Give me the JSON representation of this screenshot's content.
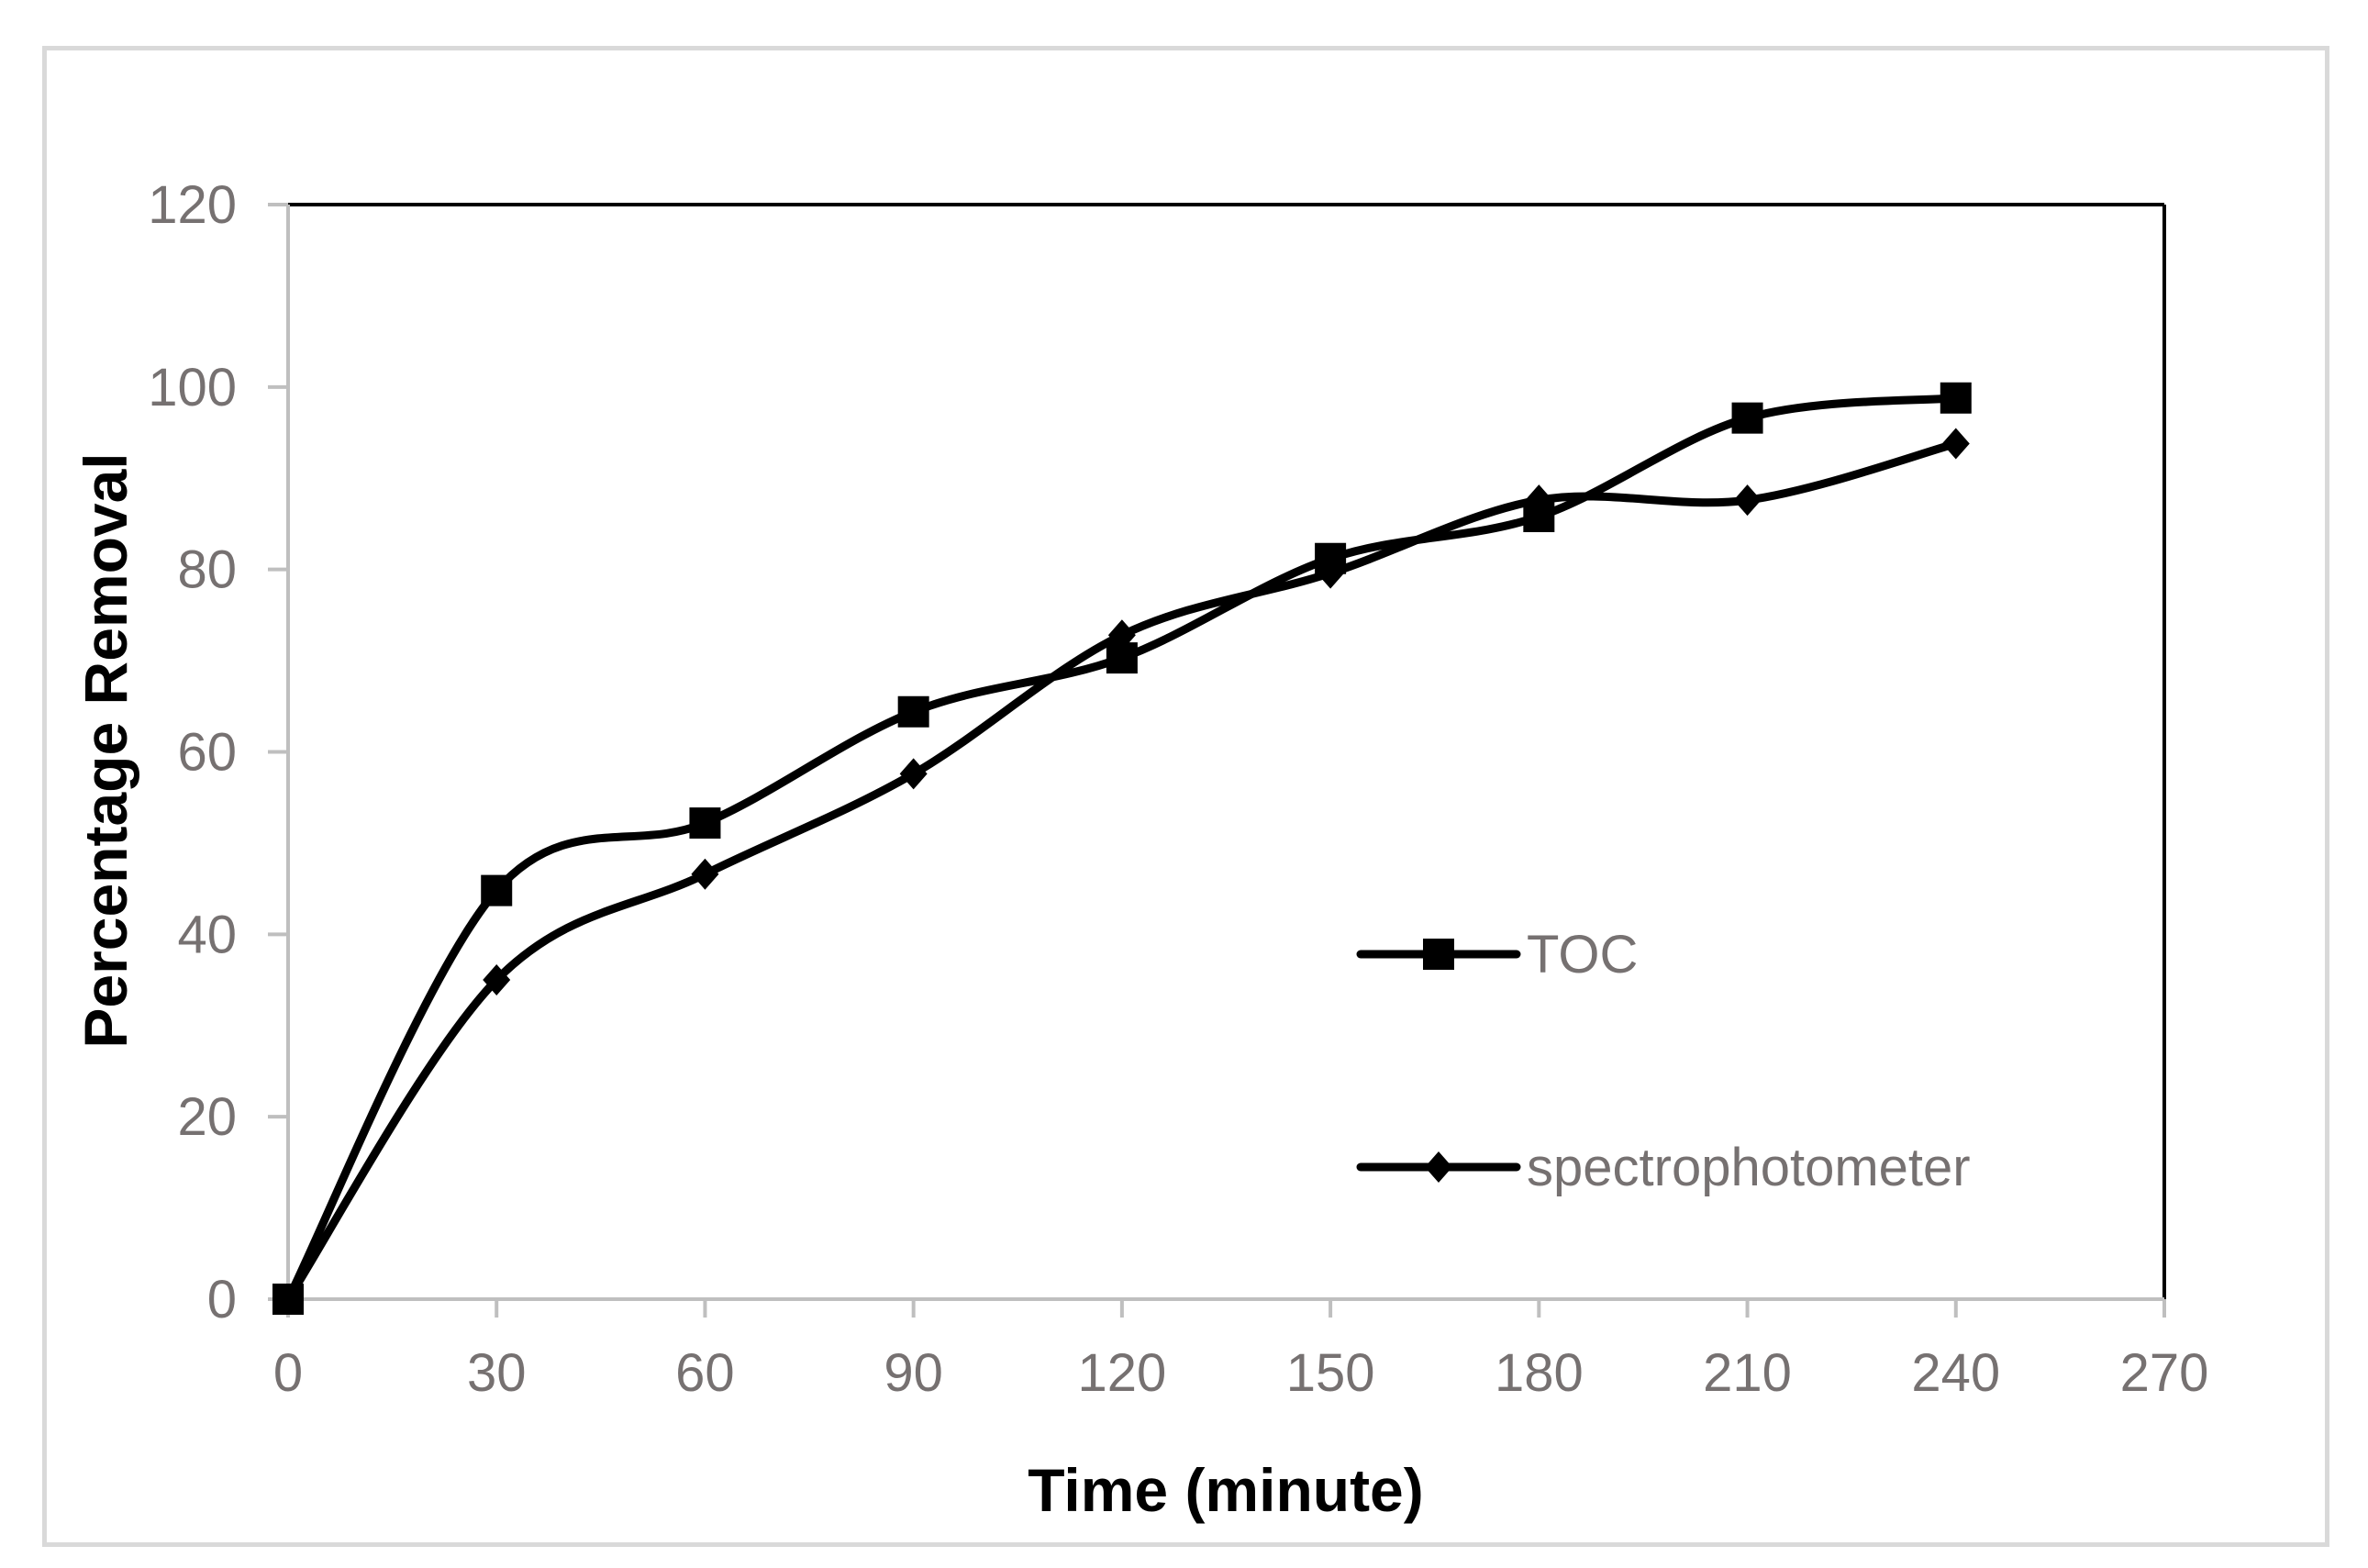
{
  "chart_data": {
    "type": "line",
    "title": "",
    "xlabel": "Time (minute)",
    "ylabel": "Percentage Removal",
    "xlim": [
      0,
      270
    ],
    "ylim": [
      0,
      120
    ],
    "x_ticks": [
      0,
      30,
      60,
      90,
      120,
      150,
      180,
      210,
      240,
      270
    ],
    "y_ticks": [
      0,
      20,
      40,
      60,
      80,
      100,
      120
    ],
    "x_tick_labels": [
      "0",
      "30",
      "60",
      "90",
      "120",
      "150",
      "180",
      "210",
      "240",
      "270"
    ],
    "y_tick_labels": [
      "0",
      "20",
      "40",
      "60",
      "80",
      "100",
      "120"
    ],
    "x": [
      0,
      30,
      60,
      90,
      120,
      150,
      180,
      210,
      240
    ],
    "series": [
      {
        "name": "TOC",
        "marker": "square",
        "values": [
          0,
          44.8,
          52.2,
          64.4,
          70.3,
          81.2,
          85.8,
          96.6,
          98.8
        ]
      },
      {
        "name": "spectrophotometer",
        "marker": "diamond",
        "values": [
          0,
          35,
          46.6,
          57.6,
          72.8,
          79.6,
          87.6,
          87.6,
          93.8
        ]
      }
    ],
    "legend_position": "right-inside",
    "grid": false,
    "line_color": "#000000",
    "text_color": "#767171"
  }
}
